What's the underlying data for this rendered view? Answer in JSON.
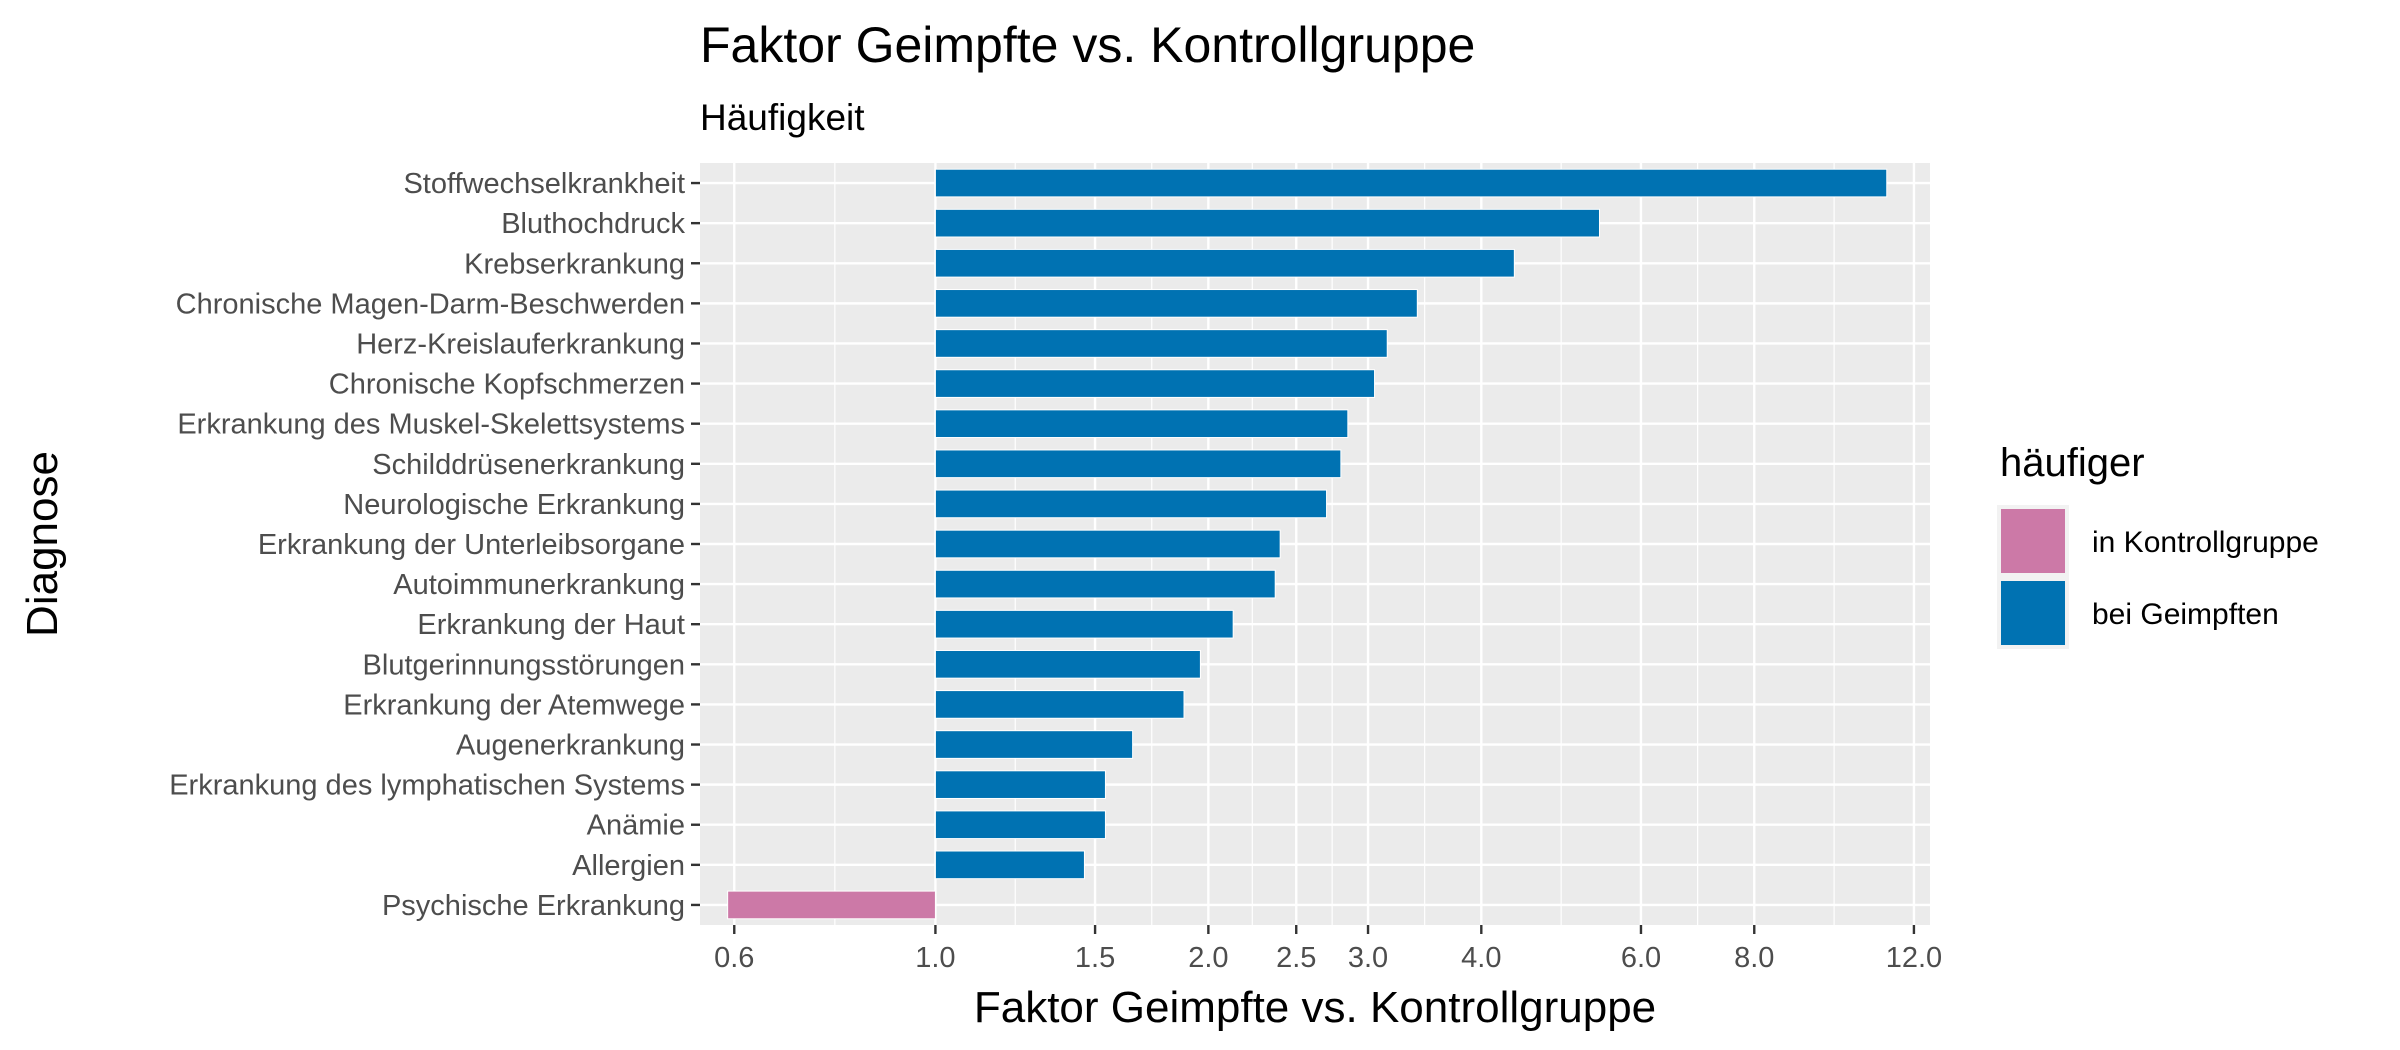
{
  "chart_data": {
    "type": "bar",
    "orientation": "horizontal",
    "title": "Faktor Geimpfte vs. Kontrollgruppe",
    "subtitle": "Häufigkeit",
    "xlabel": "Faktor Geimpfte vs. Kontrollgruppe",
    "ylabel": "Diagnose",
    "x_scale": "log",
    "xlim": [
      0.55,
      12.5
    ],
    "baseline": 1.0,
    "x_ticks": [
      "0.6",
      "1.0",
      "1.5",
      "2.0",
      "2.5",
      "3.0",
      "4.0",
      "6.0",
      "8.0",
      "12.0"
    ],
    "grid": true,
    "categories": [
      "Stoffwechselkrankheit",
      "Bluthochdruck",
      "Krebserkrankung",
      "Chronische Magen-Darm-Beschwerden",
      "Herz-Kreislauferkrankung",
      "Chronische Kopfschmerzen",
      "Erkrankung des Muskel-Skelettsystems",
      "Schilddrüsenerkrankung",
      "Neurologische Erkrankung",
      "Erkrankung der Unterleibsorgane",
      "Autoimmunerkrankung",
      "Erkrankung der Haut",
      "Blutgerinnungsstörungen",
      "Erkrankung der Atemwege",
      "Augenerkrankung",
      "Erkrankung des lymphatischen Systems",
      "Anämie",
      "Allergien",
      "Psychische Erkrankung"
    ],
    "values": [
      11.2,
      5.4,
      4.35,
      3.4,
      3.15,
      3.05,
      2.85,
      2.8,
      2.7,
      2.4,
      2.37,
      2.13,
      1.96,
      1.88,
      1.65,
      1.54,
      1.54,
      1.46,
      0.59
    ],
    "groups": [
      "bei Geimpften",
      "bei Geimpften",
      "bei Geimpften",
      "bei Geimpften",
      "bei Geimpften",
      "bei Geimpften",
      "bei Geimpften",
      "bei Geimpften",
      "bei Geimpften",
      "bei Geimpften",
      "bei Geimpften",
      "bei Geimpften",
      "bei Geimpften",
      "bei Geimpften",
      "bei Geimpften",
      "bei Geimpften",
      "bei Geimpften",
      "bei Geimpften",
      "in Kontrollgruppe"
    ],
    "legend": {
      "title": "häufiger",
      "position": "right",
      "items": [
        {
          "label": "in Kontrollgruppe",
          "color": "#CC79A7"
        },
        {
          "label": "bei Geimpften",
          "color": "#0072B2"
        }
      ]
    },
    "colors": {
      "panel": "#EBEBEB",
      "grid": "#FFFFFF"
    }
  }
}
